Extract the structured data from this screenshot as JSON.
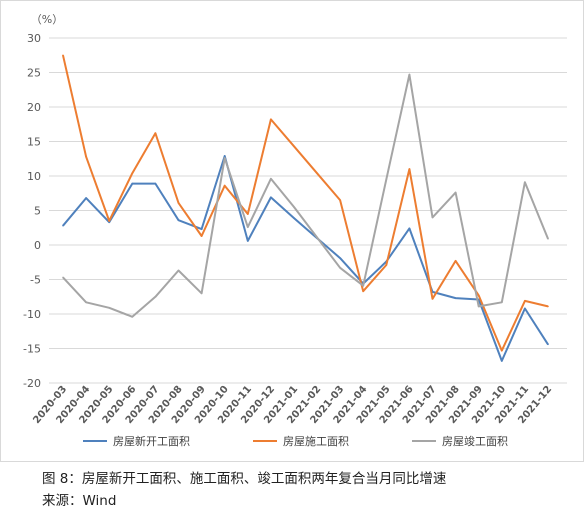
{
  "caption": {
    "figure": "图 8：房屋新开工面积、施工面积、竣工面积两年复合当月同比增速",
    "source": "来源：Wind"
  },
  "chart_data": {
    "type": "line",
    "unit_label": "（%）",
    "categories": [
      "2020-03",
      "2020-04",
      "2020-05",
      "2020-06",
      "2020-07",
      "2020-08",
      "2020-09",
      "2020-10",
      "2020-11",
      "2020-12",
      "2021-01",
      "2021-02",
      "2021-03",
      "2021-04",
      "2021-05",
      "2021-06",
      "2021-07",
      "2021-08",
      "2021-09",
      "2021-10",
      "2021-11",
      "2021-12"
    ],
    "ylim": [
      -20,
      30
    ],
    "yticks": [
      30,
      25,
      20,
      15,
      10,
      5,
      0,
      -5,
      -10,
      -15,
      -20
    ],
    "grid": "horizontal",
    "legend_position": "bottom",
    "series": [
      {
        "name": "房屋新开工面积",
        "color": "#4f81bd",
        "values": [
          2.8,
          6.8,
          3.3,
          8.9,
          8.9,
          3.6,
          2.3,
          12.9,
          0.6,
          6.9,
          3.9,
          1.0,
          -1.9,
          -5.6,
          -2.4,
          2.4,
          -6.8,
          -7.7,
          -7.9,
          -16.8,
          -9.2,
          -14.4
        ]
      },
      {
        "name": "房屋施工面积",
        "color": "#ed7d31",
        "values": [
          27.5,
          12.8,
          3.5,
          10.4,
          16.2,
          6.1,
          1.3,
          8.6,
          4.5,
          18.2,
          14.3,
          10.4,
          6.5,
          -6.7,
          -2.9,
          11.0,
          -7.8,
          -2.3,
          -7.3,
          -15.3,
          -8.1,
          -8.9
        ]
      },
      {
        "name": "房屋竣工面积",
        "color": "#a5a5a5",
        "values": [
          -4.7,
          -8.3,
          -9.1,
          -10.4,
          -7.5,
          -3.7,
          -7.0,
          12.6,
          2.6,
          9.6,
          5.5,
          1.1,
          -3.3,
          -5.9,
          9.5,
          24.7,
          4.0,
          7.6,
          -8.9,
          -8.3,
          9.1,
          0.9
        ]
      }
    ]
  }
}
